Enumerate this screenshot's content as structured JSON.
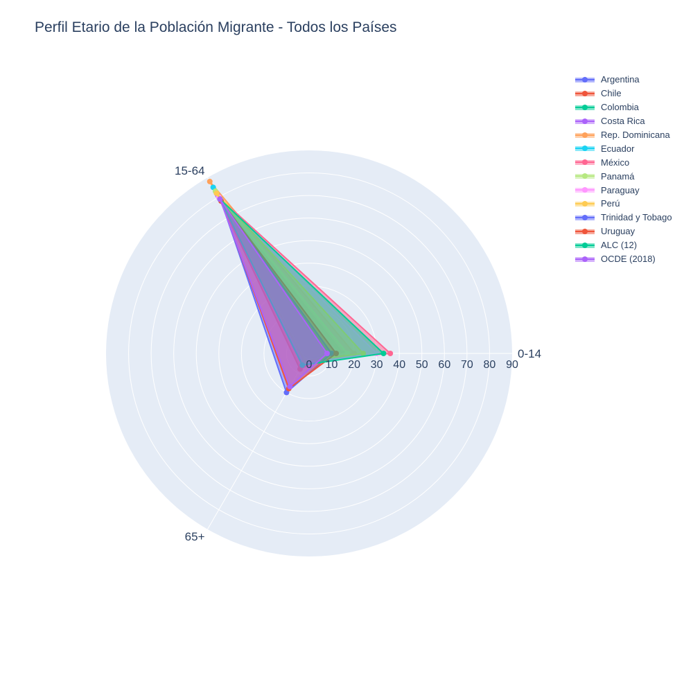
{
  "title": "Perfil Etario de la Población Migrante - Todos los Países",
  "chart_data": {
    "type": "radar",
    "angular_categories": [
      "0-14",
      "15-64",
      "65+"
    ],
    "radial_range": [
      0,
      90
    ],
    "radial_ticks": [
      "0",
      "10",
      "20",
      "30",
      "40",
      "50",
      "60",
      "70",
      "80",
      "90"
    ],
    "legend_position": "top-right",
    "series": [
      {
        "name": "Argentina",
        "values": [
          14,
          80,
          6
        ],
        "color": "#636efa"
      },
      {
        "name": "Chile",
        "values": [
          10,
          82,
          8
        ],
        "color": "#EF553B"
      },
      {
        "name": "Colombia",
        "values": [
          15,
          80,
          5
        ],
        "color": "#00cc96"
      },
      {
        "name": "Costa Rica",
        "values": [
          13,
          81,
          6
        ],
        "color": "#ab63fa"
      },
      {
        "name": "Rep. Dominicana",
        "values": [
          20,
          88,
          3
        ],
        "color": "#FFA15A"
      },
      {
        "name": "Ecuador",
        "values": [
          12,
          85,
          3
        ],
        "color": "#19d3f3"
      },
      {
        "name": "México",
        "values": [
          36,
          80,
          4
        ],
        "color": "#FF6692"
      },
      {
        "name": "Panamá",
        "values": [
          17,
          83,
          3
        ],
        "color": "#B6E880"
      },
      {
        "name": "Paraguay",
        "values": [
          30,
          80,
          5
        ],
        "color": "#FF97FF"
      },
      {
        "name": "Perú",
        "values": [
          24,
          82,
          4
        ],
        "color": "#FECB52"
      },
      {
        "name": "Trinidad y Tobago",
        "values": [
          10,
          78,
          20
        ],
        "color": "#636efa"
      },
      {
        "name": "Uruguay",
        "values": [
          12,
          78,
          18
        ],
        "color": "#EF553B"
      },
      {
        "name": "ALC (12)",
        "values": [
          33,
          79,
          6
        ],
        "color": "#00cc96"
      },
      {
        "name": "OCDE (2018)",
        "values": [
          8,
          79,
          17
        ],
        "color": "#ab63fa"
      }
    ]
  }
}
